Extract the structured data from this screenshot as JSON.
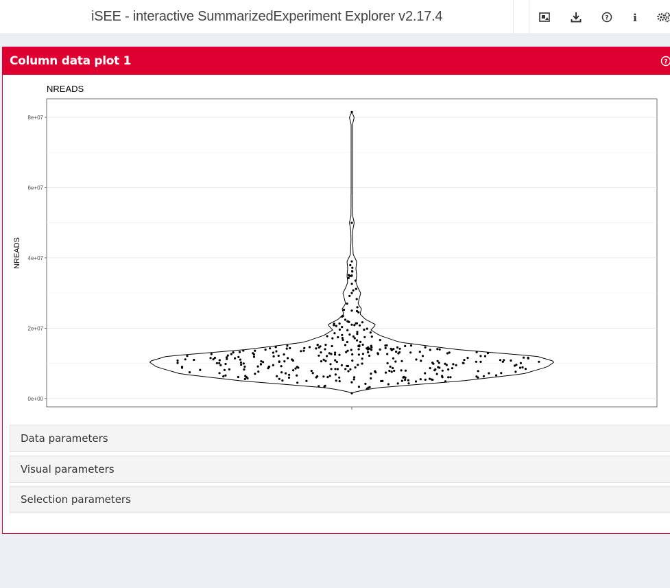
{
  "header": {
    "title": "iSEE - interactive SummarizedExperiment Explorer v2.17.4",
    "buttons": [
      {
        "icon": "image-icon"
      },
      {
        "icon": "download-icon"
      },
      {
        "icon": "question-circle-icon"
      },
      {
        "icon": "info-icon"
      },
      {
        "icon": "cogs-icon"
      }
    ]
  },
  "panel": {
    "title": "Column data plot 1",
    "accent_color": "#dd0031",
    "sections": [
      {
        "label": "Data parameters"
      },
      {
        "label": "Visual parameters"
      },
      {
        "label": "Selection parameters"
      }
    ]
  },
  "chart_data": {
    "type": "violin",
    "title": "NREADS",
    "xlabel": "",
    "ylabel": "NREADS",
    "ylim": [
      -2500000,
      85000000
    ],
    "yticks": [
      0,
      20000000,
      40000000,
      60000000,
      80000000
    ],
    "yticklabels": [
      "0e+00",
      "2e+07",
      "4e+07",
      "6e+07",
      "8e+07"
    ],
    "grid": true,
    "point_count": 350,
    "distribution": {
      "min": 1500000,
      "max": 81500000,
      "mode": 10500000,
      "note_points": [
        1500000,
        21000000,
        25000000,
        30000000,
        35000000,
        39000000,
        50000000,
        81500000
      ]
    }
  }
}
